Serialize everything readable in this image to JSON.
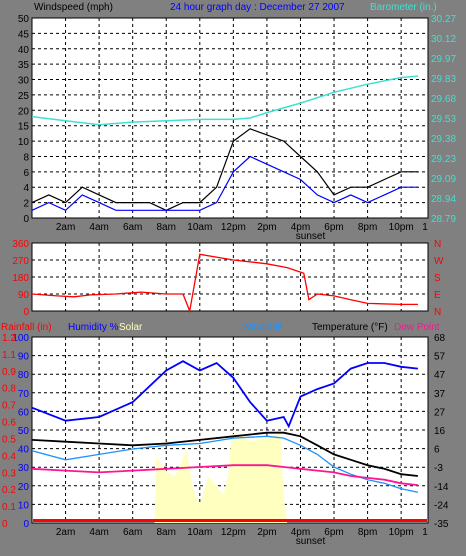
{
  "header": {
    "left_title": "Windspeed (mph)",
    "center_title": "24 hour graph day : December 27 2007",
    "right_title": "Barometer (in.)"
  },
  "colors": {
    "background": "#808080",
    "plot_bg": "#ffffff",
    "grid": "#000000",
    "windspeed": "#000000",
    "windgust": "#707070",
    "wind_avg": "#0000ff",
    "barometer": "#40e0d0",
    "direction": "#ff0000",
    "rainfall": "#ff0000",
    "humidity": "#0000ff",
    "solar": "#ffffc0",
    "windchill": "#1e90ff",
    "temperature": "#000000",
    "dew_point": "#ff1493",
    "header_text_dark": "#000000",
    "header_text_blue": "#0000ff"
  },
  "chart_data": [
    {
      "name": "wind-barometer",
      "type": "line",
      "x_ticks": [
        "2am",
        "4am",
        "6am",
        "8am",
        "10am",
        "12pm",
        "2pm",
        "4pm",
        "6pm",
        "8pm",
        "10pm",
        "1"
      ],
      "x_note": "sunset",
      "ylabel_left": "Windspeed (mph)",
      "ylabel_right": "Barometer (in.)",
      "y_left_ticks": [
        "0",
        "2",
        "4",
        "6",
        "8",
        "10",
        "15",
        "20",
        "25",
        "30",
        "35",
        "40",
        "45",
        "50"
      ],
      "y_right_ticks": [
        "28.79",
        "28.94",
        "29.09",
        "29.23",
        "29.38",
        "29.53",
        "29.68",
        "29.83",
        "29.97",
        "30.12",
        "30.27"
      ],
      "ylim_left": [
        0,
        50
      ],
      "ylim_right": [
        28.79,
        30.27
      ],
      "series": [
        {
          "name": "Barometer",
          "axis": "right",
          "x": [
            0,
            2,
            4,
            6,
            8,
            10,
            12,
            13,
            14,
            16,
            18,
            20,
            22,
            23
          ],
          "values": [
            29.54,
            29.51,
            29.48,
            29.5,
            29.51,
            29.52,
            29.52,
            29.53,
            29.57,
            29.64,
            29.72,
            29.78,
            29.83,
            29.84
          ]
        },
        {
          "name": "Windspeed",
          "axis": "left",
          "x": [
            0,
            1,
            2,
            3,
            4,
            5,
            6,
            7,
            8,
            9,
            10,
            11,
            12,
            13,
            14,
            15,
            16,
            17,
            18,
            19,
            20,
            21,
            22,
            23
          ],
          "values": [
            2,
            3,
            2,
            4,
            3,
            2,
            2,
            2,
            1,
            2,
            2,
            4,
            10,
            14,
            12,
            10,
            8,
            6,
            3,
            4,
            4,
            5,
            6,
            6
          ]
        },
        {
          "name": "Wind average",
          "axis": "left",
          "x": [
            0,
            1,
            2,
            3,
            4,
            5,
            6,
            7,
            8,
            9,
            10,
            11,
            12,
            13,
            14,
            15,
            16,
            17,
            18,
            19,
            20,
            21,
            22,
            23
          ],
          "values": [
            1,
            2,
            1,
            3,
            2,
            1,
            1,
            1,
            1,
            1,
            1,
            2,
            6,
            8,
            7,
            6,
            5,
            3,
            2,
            3,
            2,
            3,
            4,
            4
          ]
        }
      ],
      "grid": true
    },
    {
      "name": "wind-direction",
      "type": "line",
      "y_left_ticks": [
        "0",
        "90",
        "180",
        "270",
        "360"
      ],
      "y_right_ticks": [
        "N",
        "E",
        "S",
        "W",
        "N"
      ],
      "ylim_left": [
        0,
        360
      ],
      "series": [
        {
          "name": "Wind direction",
          "x": [
            0,
            1.5,
            2.5,
            3.5,
            5,
            6.5,
            8,
            9,
            9.4,
            10,
            12,
            14,
            15.2,
            16.2,
            16.5,
            17,
            18,
            19,
            20,
            22,
            23
          ],
          "values": [
            90,
            80,
            75,
            85,
            90,
            100,
            90,
            90,
            0,
            300,
            270,
            250,
            230,
            200,
            60,
            90,
            80,
            60,
            40,
            35,
            35
          ]
        }
      ],
      "grid": true
    },
    {
      "name": "temperature-humidity",
      "type": "line",
      "labels": [
        "Rainfall (in)",
        "Humidity %",
        "Solar",
        "Windchill",
        "Temperature (°F)",
        "Dew Point"
      ],
      "y_left_ticks": [
        "0",
        "10",
        "20",
        "30",
        "40",
        "50",
        "60",
        "70",
        "80",
        "90",
        "100"
      ],
      "y_rain_ticks": [
        "0",
        "0.1",
        "0.2",
        "0.3",
        "0.4",
        "0.5",
        "0.6",
        "0.7",
        "0.8",
        "0.9",
        "1.1",
        "1.2"
      ],
      "y_right_ticks": [
        "-35",
        "-24",
        "-14",
        "-3",
        "6",
        "16",
        "27",
        "37",
        "47",
        "57",
        "68"
      ],
      "ylim_left": [
        0,
        100
      ],
      "ylim_right": [
        -35,
        68
      ],
      "series": [
        {
          "name": "Humidity %",
          "axis": "left",
          "x": [
            0,
            2,
            4,
            6,
            8,
            9,
            10,
            11,
            12,
            13,
            14,
            15,
            15.3,
            16,
            17,
            18,
            19,
            20,
            21,
            22,
            23
          ],
          "values": [
            62,
            55,
            57,
            65,
            82,
            87,
            82,
            86,
            78,
            65,
            55,
            57,
            52,
            68,
            72,
            75,
            83,
            86,
            86,
            84,
            83
          ]
        },
        {
          "name": "Temperature (°F)",
          "axis": "right",
          "x": [
            0,
            2,
            4,
            6,
            8,
            10,
            12,
            14,
            15,
            16,
            17,
            18,
            19,
            20,
            21,
            22,
            23
          ],
          "values": [
            11,
            10,
            9,
            8,
            9,
            11,
            13,
            15,
            15,
            13,
            8,
            3,
            0,
            -3,
            -5,
            -8,
            -9
          ]
        },
        {
          "name": "Windchill",
          "axis": "right",
          "x": [
            0,
            2,
            4,
            6,
            8,
            10,
            12,
            14,
            15,
            16,
            17,
            18,
            19,
            20,
            21,
            22,
            23
          ],
          "values": [
            5,
            0,
            3,
            6,
            8,
            9,
            12,
            13,
            12,
            8,
            3,
            -4,
            -8,
            -11,
            -13,
            -16,
            -18
          ]
        },
        {
          "name": "Dew Point",
          "axis": "right",
          "x": [
            0,
            2,
            4,
            6,
            8,
            10,
            12,
            14,
            15,
            16,
            17,
            18,
            19,
            20,
            21,
            22,
            23
          ],
          "values": [
            -5,
            -6,
            -7,
            -6,
            -5,
            -4,
            -3,
            -3,
            -4,
            -5,
            -6,
            -7,
            -9,
            -10,
            -11,
            -13,
            -14
          ]
        },
        {
          "name": "Solar",
          "axis": "left",
          "x": [
            7.3,
            7.4,
            8,
            8.5,
            8.9,
            9.2,
            9.6,
            10,
            10.5,
            11,
            11.4,
            11.7,
            11.9,
            12.5,
            13,
            14,
            14.8,
            15,
            15.2
          ],
          "values": [
            0,
            36,
            28,
            25,
            32,
            40,
            18,
            10,
            25,
            20,
            15,
            26,
            48,
            47,
            44,
            46,
            48,
            15,
            0
          ]
        },
        {
          "name": "Rainfall (in)",
          "axis": "rain",
          "x": [
            0,
            23
          ],
          "values": [
            0,
            0
          ]
        }
      ],
      "grid": true
    }
  ]
}
